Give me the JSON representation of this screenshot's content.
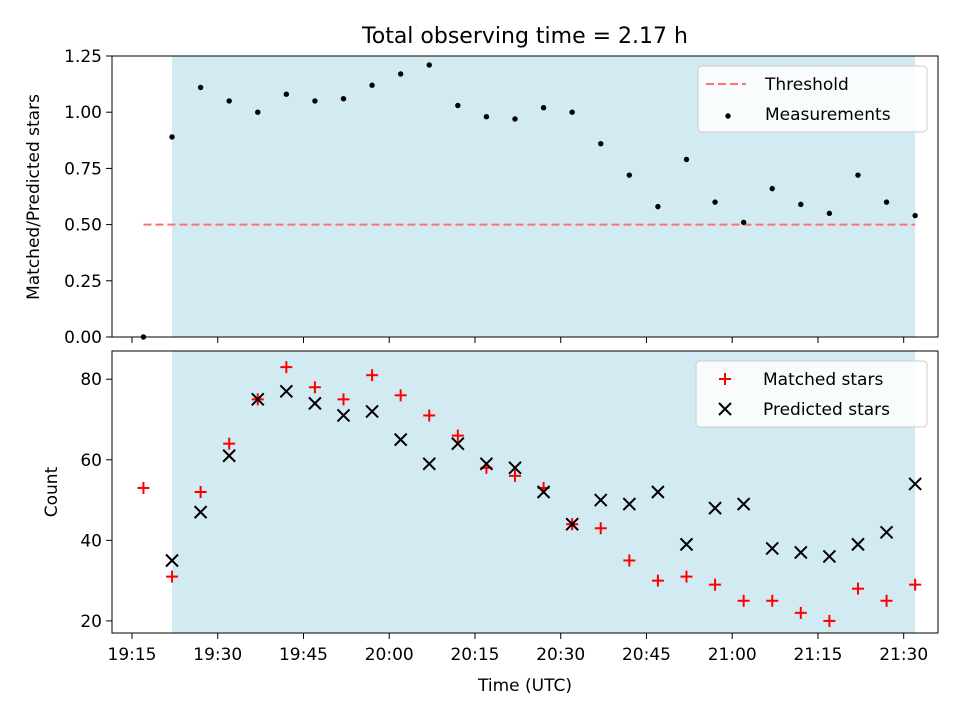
{
  "figure": {
    "title": "Total observing time = 2.17 h",
    "xlabel": "Time (UTC)",
    "x_tick_labels": [
      "19:15",
      "19:30",
      "19:45",
      "20:00",
      "20:15",
      "20:30",
      "20:45",
      "21:00",
      "21:15",
      "21:30"
    ],
    "shade_color": "#add8e6",
    "shade_range": [
      "19:22",
      "21:32"
    ]
  },
  "chart_data": [
    {
      "type": "scatter",
      "ylabel": "Matched/Predicted stars",
      "ylim": [
        0,
        1.25
      ],
      "yticks": [
        0.0,
        0.25,
        0.5,
        0.75,
        1.0,
        1.25
      ],
      "ytick_labels": [
        "0.00",
        "0.25",
        "0.50",
        "0.75",
        "1.00",
        "1.25"
      ],
      "legend_position": "top-right",
      "threshold": {
        "name": "Threshold",
        "value": 0.5,
        "x_range": [
          "19:17",
          "21:32"
        ],
        "color": "#ff7070"
      },
      "series": [
        {
          "name": "Measurements",
          "color": "#000000",
          "x": [
            "19:17",
            "19:22",
            "19:27",
            "19:32",
            "19:37",
            "19:42",
            "19:47",
            "19:52",
            "19:57",
            "20:02",
            "20:07",
            "20:12",
            "20:17",
            "20:22",
            "20:27",
            "20:32",
            "20:37",
            "20:42",
            "20:47",
            "20:52",
            "20:57",
            "21:02",
            "21:07",
            "21:12",
            "21:17",
            "21:22",
            "21:27",
            "21:32"
          ],
          "y": [
            0.0,
            0.89,
            1.11,
            1.05,
            1.0,
            1.08,
            1.05,
            1.06,
            1.12,
            1.17,
            1.21,
            1.03,
            0.98,
            0.97,
            1.02,
            1.0,
            0.86,
            0.72,
            0.58,
            0.79,
            0.6,
            0.51,
            0.66,
            0.59,
            0.55,
            0.72,
            0.6,
            0.54
          ]
        }
      ]
    },
    {
      "type": "scatter",
      "ylabel": "Count",
      "ylim": [
        17,
        87
      ],
      "yticks": [
        20,
        40,
        60,
        80
      ],
      "ytick_labels": [
        "20",
        "40",
        "60",
        "80"
      ],
      "legend_position": "top-right",
      "series": [
        {
          "name": "Matched stars",
          "marker": "plus",
          "color": "#ff0000",
          "x": [
            "19:17",
            "19:22",
            "19:27",
            "19:32",
            "19:37",
            "19:42",
            "19:47",
            "19:52",
            "19:57",
            "20:02",
            "20:07",
            "20:12",
            "20:17",
            "20:22",
            "20:27",
            "20:32",
            "20:37",
            "20:42",
            "20:47",
            "20:52",
            "20:57",
            "21:02",
            "21:07",
            "21:12",
            "21:17",
            "21:22",
            "21:27",
            "21:32"
          ],
          "y": [
            53,
            31,
            52,
            64,
            75,
            83,
            78,
            75,
            81,
            76,
            71,
            66,
            58,
            56,
            53,
            44,
            43,
            35,
            30,
            31,
            29,
            25,
            25,
            22,
            20,
            28,
            25,
            29
          ]
        },
        {
          "name": "Predicted stars",
          "marker": "x",
          "color": "#000000",
          "x": [
            "19:22",
            "19:27",
            "19:32",
            "19:37",
            "19:42",
            "19:47",
            "19:52",
            "19:57",
            "20:02",
            "20:07",
            "20:12",
            "20:17",
            "20:22",
            "20:27",
            "20:32",
            "20:37",
            "20:42",
            "20:47",
            "20:52",
            "20:57",
            "21:02",
            "21:07",
            "21:12",
            "21:17",
            "21:22",
            "21:27",
            "21:32"
          ],
          "y": [
            35,
            47,
            61,
            75,
            77,
            74,
            71,
            72,
            65,
            59,
            64,
            59,
            58,
            52,
            44,
            50,
            49,
            52,
            39,
            48,
            49,
            38,
            37,
            36,
            39,
            42,
            54
          ]
        }
      ]
    }
  ]
}
